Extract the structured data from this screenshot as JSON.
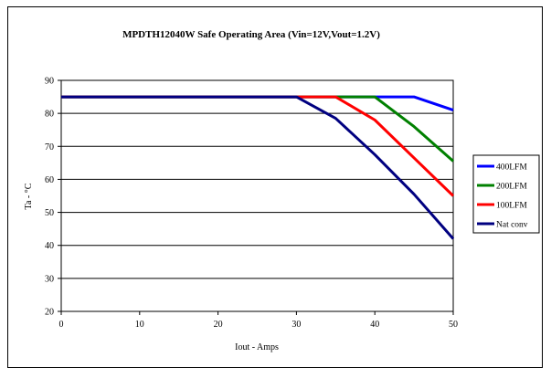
{
  "chart_data": {
    "type": "line",
    "title": "MPDTH12040W  Safe Operating Area (Vin=12V,Vout=1.2V)",
    "xlabel": "Iout - Amps",
    "ylabel": "Ta - °C",
    "xlim": [
      0,
      50
    ],
    "ylim": [
      20,
      90
    ],
    "x_ticks": [
      "0",
      "10",
      "20",
      "30",
      "40",
      "50"
    ],
    "y_ticks": [
      "20",
      "30",
      "40",
      "50",
      "60",
      "70",
      "80",
      "90"
    ],
    "grid": "horizontal",
    "legend_position": "right",
    "series": [
      {
        "name": "400LFM",
        "color": "#0000ff",
        "x": [
          0,
          30,
          40,
          45,
          50
        ],
        "y": [
          85,
          85,
          85,
          85,
          81
        ]
      },
      {
        "name": "200LFM",
        "color": "#008000",
        "x": [
          0,
          30,
          35,
          40,
          45,
          50
        ],
        "y": [
          85,
          85,
          85,
          85,
          76,
          65.5
        ]
      },
      {
        "name": "100LFM",
        "color": "#ff0000",
        "x": [
          0,
          30,
          35,
          40,
          45,
          50
        ],
        "y": [
          85,
          85,
          85,
          78,
          66.5,
          55
        ]
      },
      {
        "name": "Nat conv",
        "color": "#000080",
        "x": [
          0,
          30,
          35,
          40,
          45,
          50
        ],
        "y": [
          85,
          85,
          78.5,
          67.5,
          55.5,
          42
        ]
      }
    ]
  }
}
